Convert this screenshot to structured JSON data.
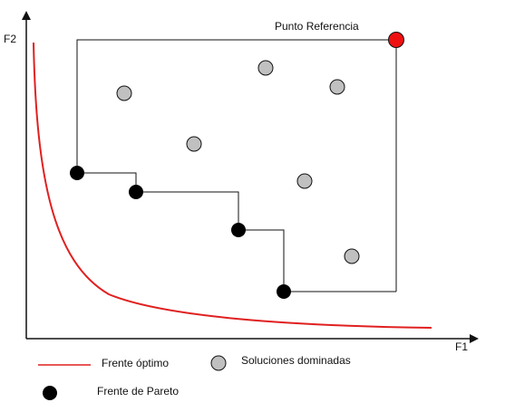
{
  "labels": {
    "y_axis": "F2",
    "x_axis": "F1",
    "reference_point": "Punto Referencia"
  },
  "legend": {
    "optimal_front": "Frente óptimo",
    "dominated_solutions": "Soluciones dominadas",
    "pareto_front": "Frente de Pareto"
  },
  "colors": {
    "optimal_front": "#e02020",
    "reference_point": "#ee1111",
    "dominated_fill": "#c0c0c0",
    "pareto_fill": "#000000",
    "lines": "#000000"
  }
}
